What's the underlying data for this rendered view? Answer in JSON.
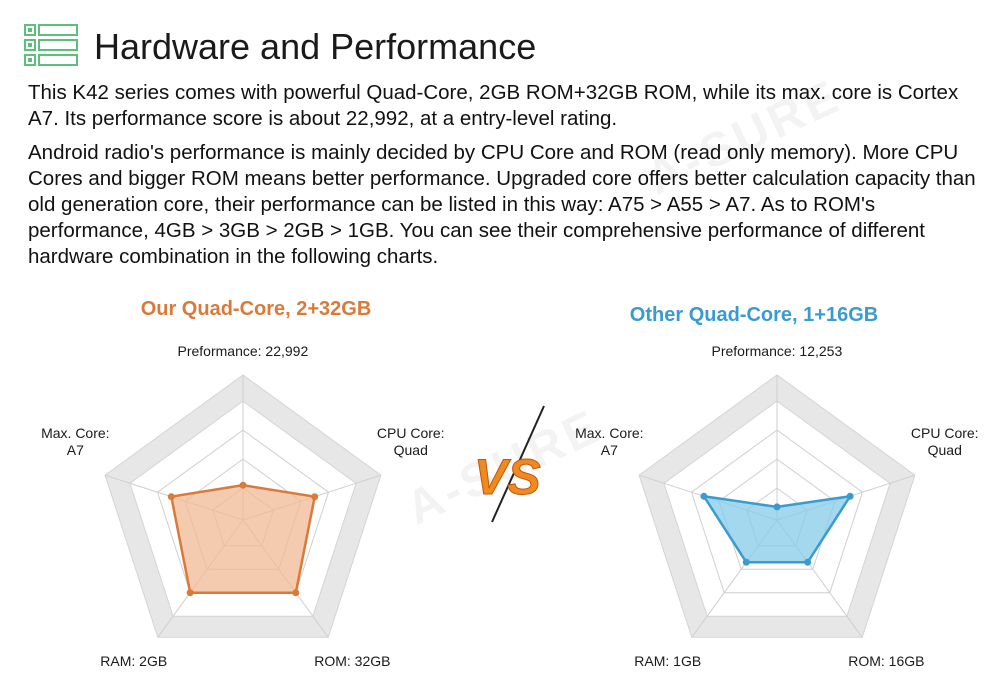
{
  "header": {
    "icon": "list-icon",
    "title": "Hardware and Performance"
  },
  "paragraphs": [
    "This K42 series comes with powerful Quad-Core, 2GB ROM+32GB ROM, while its max. core is Cortex A7. Its performance score is about 22,992, at a entry-level rating.",
    "Android radio's performance is mainly decided by CPU Core and ROM (read only memory). More CPU Cores and bigger ROM means better performance.  Upgraded core offers better calculation capacity than old generation core, their performance can be listed in this way: A75 > A55 > A7. As to ROM's performance, 4GB > 3GB > 2GB > 1GB. You can see their comprehensive performance of different hardware combination in the following charts."
  ],
  "vs_text": "VS",
  "watermark": "A-SURE",
  "colors": {
    "left_accent": "#d97a3b",
    "left_fill": "#f2b994",
    "right_accent": "#3a9bd0",
    "right_fill": "#86cbe8",
    "radar_ring": "#e7e7e7",
    "radar_inner": "#ffffff"
  },
  "chart_data": [
    {
      "type": "radar",
      "title": "Our Quad-Core, 2+32GB",
      "axes": [
        [
          "Preformance: 22,992"
        ],
        [
          "CPU Core:",
          "Quad"
        ],
        [
          "ROM: 32GB"
        ],
        [
          "RAM: 2GB"
        ],
        [
          "Max. Core:",
          "A7"
        ]
      ],
      "values": [
        0.24,
        0.52,
        0.62,
        0.62,
        0.52
      ],
      "scale_max": 1
    },
    {
      "type": "radar",
      "title": "Other Quad-Core, 1+16GB",
      "axes": [
        [
          "Preformance: 12,253"
        ],
        [
          "CPU Core:",
          "Quad"
        ],
        [
          "ROM: 16GB"
        ],
        [
          "RAM: 1GB"
        ],
        [
          "Max. Core:",
          "A7"
        ]
      ],
      "values": [
        0.09,
        0.53,
        0.36,
        0.36,
        0.53
      ],
      "scale_max": 1
    }
  ]
}
